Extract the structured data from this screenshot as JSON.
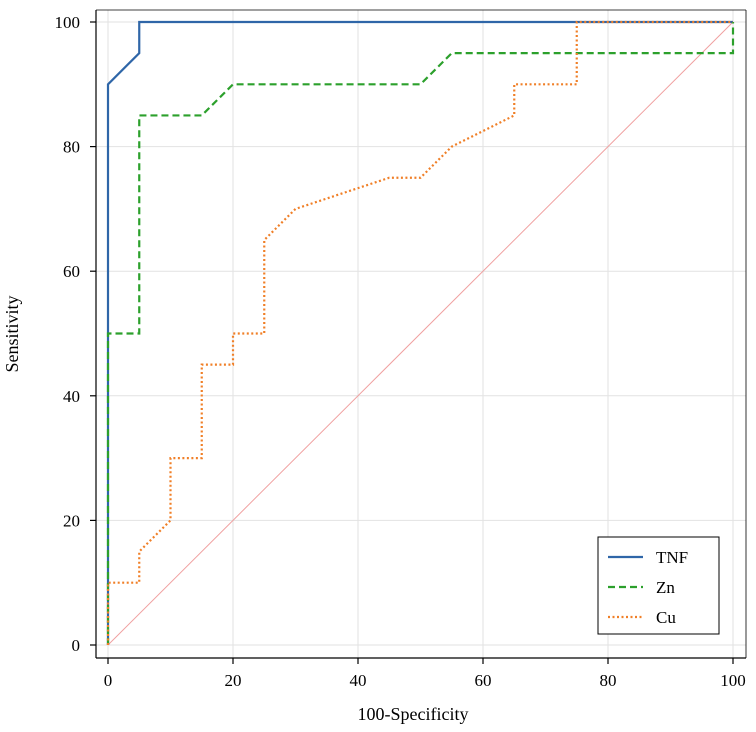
{
  "chart_data": {
    "type": "line",
    "title": "",
    "xlabel": "100-Specificity",
    "ylabel": "Sensitivity",
    "xlim": [
      0,
      100
    ],
    "ylim": [
      0,
      100
    ],
    "xticks": [
      0,
      20,
      40,
      60,
      80,
      100
    ],
    "yticks": [
      0,
      20,
      40,
      60,
      80,
      100
    ],
    "grid": true,
    "legend_position": "bottom-right",
    "series": [
      {
        "name": "TNF",
        "color": "#2f66a8",
        "style": "solid",
        "points": [
          [
            0,
            0
          ],
          [
            0,
            90
          ],
          [
            5,
            95
          ],
          [
            5,
            100
          ],
          [
            100,
            100
          ]
        ]
      },
      {
        "name": "Zn",
        "color": "#2ca02c",
        "style": "dashed",
        "points": [
          [
            0,
            0
          ],
          [
            0,
            50
          ],
          [
            5,
            50
          ],
          [
            5,
            85
          ],
          [
            15,
            85
          ],
          [
            20,
            90
          ],
          [
            50,
            90
          ],
          [
            55,
            95
          ],
          [
            100,
            95
          ],
          [
            100,
            100
          ]
        ]
      },
      {
        "name": "Cu",
        "color": "#f07f27",
        "style": "dotted",
        "points": [
          [
            0,
            0
          ],
          [
            0,
            10
          ],
          [
            5,
            10
          ],
          [
            5,
            15
          ],
          [
            10,
            20
          ],
          [
            10,
            30
          ],
          [
            15,
            30
          ],
          [
            15,
            45
          ],
          [
            20,
            45
          ],
          [
            20,
            50
          ],
          [
            25,
            50
          ],
          [
            25,
            65
          ],
          [
            30,
            70
          ],
          [
            45,
            75
          ],
          [
            50,
            75
          ],
          [
            55,
            80
          ],
          [
            65,
            85
          ],
          [
            65,
            90
          ],
          [
            75,
            90
          ],
          [
            75,
            100
          ],
          [
            100,
            100
          ]
        ]
      }
    ],
    "reference_line": {
      "name": "diagonal",
      "color": "#f0a0a0",
      "points": [
        [
          0,
          0
        ],
        [
          100,
          100
        ]
      ]
    }
  }
}
